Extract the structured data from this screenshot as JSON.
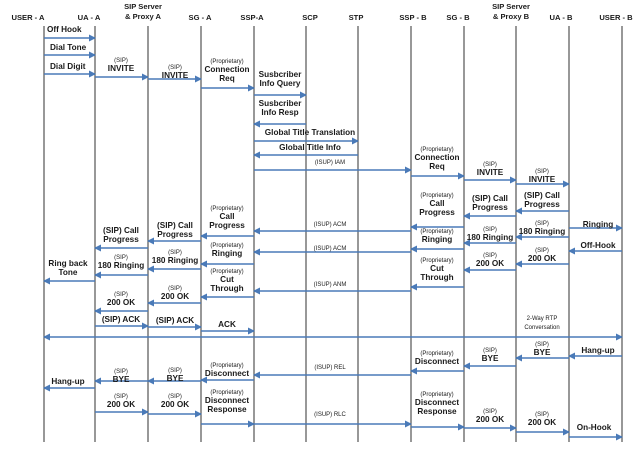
{
  "colors": {
    "line": "#4a7ab8",
    "lifeline": "#1a1a1a",
    "text": "#1a1a1a"
  },
  "entities": [
    {
      "id": "user_a",
      "lines": [
        "USER - A"
      ]
    },
    {
      "id": "ua_a",
      "lines": [
        "UA - A"
      ]
    },
    {
      "id": "proxy_a",
      "lines": [
        "SIP Server",
        "& Proxy A"
      ]
    },
    {
      "id": "sg_a",
      "lines": [
        "SG - A"
      ]
    },
    {
      "id": "ssp_a",
      "lines": [
        "SSP-A"
      ]
    },
    {
      "id": "scp",
      "lines": [
        "SCP"
      ]
    },
    {
      "id": "stp",
      "lines": [
        "STP"
      ]
    },
    {
      "id": "ssp_b",
      "lines": [
        "SSP - B"
      ]
    },
    {
      "id": "sg_b",
      "lines": [
        "SG - B"
      ]
    },
    {
      "id": "proxy_b",
      "lines": [
        "SIP Server",
        "& Proxy B"
      ]
    },
    {
      "id": "ua_b",
      "lines": [
        "UA - B"
      ]
    },
    {
      "id": "user_b",
      "lines": [
        "USER - B"
      ]
    }
  ],
  "messages": [
    {
      "from": "user_a",
      "to": "ua_a",
      "label": [
        "Off Hook"
      ]
    },
    {
      "from": "user_a",
      "to": "ua_a",
      "label": [
        "Dial Tone"
      ]
    },
    {
      "from": "user_a",
      "to": "ua_a",
      "label": [
        "Dial Digit"
      ]
    },
    {
      "from": "ua_a",
      "to": "proxy_a",
      "label": [
        "(SIP)",
        "INVITE"
      ]
    },
    {
      "from": "proxy_a",
      "to": "sg_a",
      "label": [
        "(SIP)",
        "INVITE"
      ]
    },
    {
      "from": "sg_a",
      "to": "ssp_a",
      "label": [
        "(Proprietary)",
        "Connection",
        "Req"
      ]
    },
    {
      "from": "ssp_a",
      "to": "scp",
      "label": [
        "Susbcriber",
        "Info Query"
      ]
    },
    {
      "from": "scp",
      "to": "ssp_a",
      "label": [
        "Susbcriber",
        "Info Resp"
      ]
    },
    {
      "from": "ssp_a",
      "to": "stp",
      "label": [
        "Global Title Translation"
      ]
    },
    {
      "from": "stp",
      "to": "ssp_a",
      "label": [
        "Global Title Info"
      ]
    },
    {
      "from": "ssp_a",
      "to": "ssp_b",
      "label": [
        "(ISUP) IAM"
      ]
    },
    {
      "from": "ssp_b",
      "to": "sg_b",
      "label": [
        "(Proprietary)",
        "Connection",
        "Req"
      ]
    },
    {
      "from": "sg_b",
      "to": "proxy_b",
      "label": [
        "(SIP)",
        "INVITE"
      ]
    },
    {
      "from": "proxy_b",
      "to": "ua_b",
      "label": [
        "(SIP)",
        "INVITE"
      ]
    },
    {
      "from": "ua_b",
      "to": "proxy_b",
      "label": [
        "(SIP) Call",
        "Progress"
      ]
    },
    {
      "from": "proxy_b",
      "to": "sg_b",
      "label": [
        "(SIP) Call",
        "Progress"
      ]
    },
    {
      "from": "sg_b",
      "to": "ssp_b",
      "label": [
        "(Proprietary)",
        "Call",
        "Progress"
      ]
    },
    {
      "from": "ua_b",
      "to": "user_b",
      "label": [
        "Ringing"
      ]
    },
    {
      "from": "ua_b",
      "to": "proxy_b",
      "label": [
        "(SIP)",
        "180 Ringing"
      ]
    },
    {
      "from": "proxy_b",
      "to": "sg_b",
      "label": [
        "(SIP)",
        "180 Ringing"
      ]
    },
    {
      "from": "ssp_b",
      "to": "ssp_a",
      "label": [
        "(ISUP) ACM"
      ]
    },
    {
      "from": "ssp_a",
      "to": "sg_a",
      "label": [
        "(Proprietary)",
        "Call",
        "Progress"
      ]
    },
    {
      "from": "sg_a",
      "to": "proxy_a",
      "label": [
        "(SIP) Call",
        "Progress"
      ]
    },
    {
      "from": "proxy_a",
      "to": "ua_a",
      "label": [
        "(SIP) Call",
        "Progress"
      ]
    },
    {
      "from": "sg_b",
      "to": "ssp_b",
      "label": [
        "(Proprietary)",
        "Ringing"
      ]
    },
    {
      "from": "user_b",
      "to": "ua_b",
      "label": [
        "Off-Hook"
      ]
    },
    {
      "from": "ssp_b",
      "to": "ssp_a",
      "label": [
        "(ISUP) ACM"
      ]
    },
    {
      "from": "ssp_a",
      "to": "sg_a",
      "label": [
        "(Proprietary)",
        "Ringing"
      ]
    },
    {
      "from": "sg_a",
      "to": "proxy_a",
      "label": [
        "(SIP)",
        "180 Ringing"
      ]
    },
    {
      "from": "proxy_a",
      "to": "ua_a",
      "label": [
        "(SIP)",
        "180 Ringing"
      ]
    },
    {
      "from": "ua_a",
      "to": "user_a",
      "label": [
        "Ring back",
        "Tone"
      ]
    },
    {
      "from": "ua_b",
      "to": "proxy_b",
      "label": [
        "(SIP)",
        "200 OK"
      ]
    },
    {
      "from": "proxy_b",
      "to": "sg_b",
      "label": [
        "(SIP)",
        "200 OK"
      ]
    },
    {
      "from": "sg_b",
      "to": "ssp_b",
      "label": [
        "(Proprietary)",
        "Cut",
        "Through"
      ]
    },
    {
      "from": "ssp_b",
      "to": "ssp_a",
      "label": [
        "(ISUP) ANM"
      ]
    },
    {
      "from": "ssp_a",
      "to": "sg_a",
      "label": [
        "(Proprietary)",
        "Cut",
        "Through"
      ]
    },
    {
      "from": "sg_a",
      "to": "proxy_a",
      "label": [
        "(SIP)",
        "200 OK"
      ]
    },
    {
      "from": "proxy_a",
      "to": "ua_a",
      "label": [
        "(SIP)",
        "200 OK"
      ]
    },
    {
      "from": "ua_a",
      "to": "proxy_a",
      "label": [
        "(SIP) ACK"
      ]
    },
    {
      "from": "proxy_a",
      "to": "sg_a",
      "label": [
        "(SIP) ACK"
      ]
    },
    {
      "from": "sg_a",
      "to": "ssp_a",
      "label": [
        "ACK"
      ]
    },
    {
      "from": "user_a",
      "to": "user_b",
      "label": [
        "2-Way RTP",
        "Conversation"
      ],
      "bidirectional": true
    },
    {
      "from": "user_b",
      "to": "ua_b",
      "label": [
        "Hang-up"
      ]
    },
    {
      "from": "ua_b",
      "to": "proxy_b",
      "label": [
        "(SIP)",
        "BYE"
      ]
    },
    {
      "from": "proxy_b",
      "to": "sg_b",
      "label": [
        "(SIP)",
        "BYE"
      ]
    },
    {
      "from": "sg_b",
      "to": "ssp_b",
      "label": [
        "(Proprietary)",
        "Disconnect"
      ]
    },
    {
      "from": "ssp_b",
      "to": "ssp_a",
      "label": [
        "(ISUP) REL"
      ]
    },
    {
      "from": "ssp_a",
      "to": "sg_a",
      "label": [
        "(Proprietary)",
        "Disconnect"
      ]
    },
    {
      "from": "sg_a",
      "to": "proxy_a",
      "label": [
        "(SIP)",
        "BYE"
      ]
    },
    {
      "from": "proxy_a",
      "to": "ua_a",
      "label": [
        "(SIP)",
        "BYE"
      ]
    },
    {
      "from": "ua_a",
      "to": "user_a",
      "label": [
        "Hang-up"
      ]
    },
    {
      "from": "ua_a",
      "to": "proxy_a",
      "label": [
        "(SIP)",
        "200 OK"
      ]
    },
    {
      "from": "proxy_a",
      "to": "sg_a",
      "label": [
        "(SIP)",
        "200 OK"
      ]
    },
    {
      "from": "sg_a",
      "to": "ssp_a",
      "label": [
        "(Proprietary)",
        "Disconnect",
        "Response"
      ]
    },
    {
      "from": "ssp_a",
      "to": "ssp_b",
      "label": [
        "(ISUP) RLC"
      ]
    },
    {
      "from": "ssp_b",
      "to": "sg_b",
      "label": [
        "(Proprietary)",
        "Disconnect",
        "Response"
      ]
    },
    {
      "from": "sg_b",
      "to": "proxy_b",
      "label": [
        "(SIP)",
        "200 OK"
      ]
    },
    {
      "from": "proxy_b",
      "to": "ua_b",
      "label": [
        "(SIP)",
        "200 OK"
      ]
    },
    {
      "from": "ua_b",
      "to": "user_b",
      "label": [
        "On-Hook"
      ]
    }
  ]
}
